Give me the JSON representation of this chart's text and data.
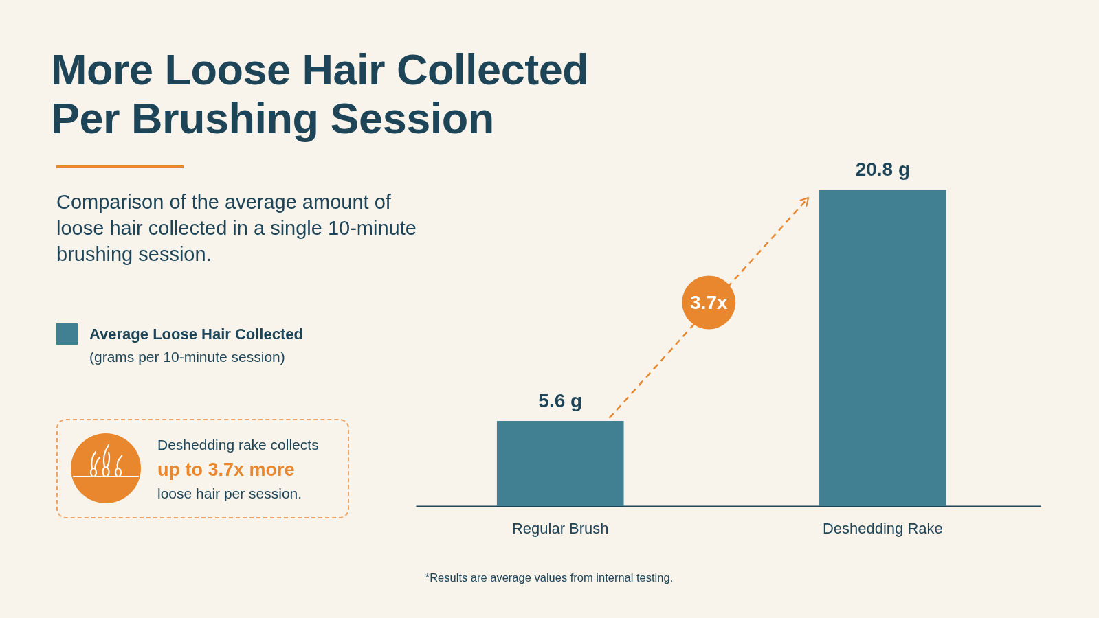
{
  "chart_data": {
    "type": "bar",
    "title": "More Loose Hair Collected Per Brushing Session",
    "subtitle": "Comparison of the average amount of loose hair collected in a single 10-minute brushing session.",
    "categories": [
      "Regular Brush",
      "Deshedding Rake"
    ],
    "series": [
      {
        "name": "Average Loose Hair Collected",
        "color": "#417f93",
        "values": [
          5.6,
          20.8
        ],
        "value_labels": [
          "5.6 g",
          "20.8 g"
        ]
      }
    ],
    "legend": "left",
    "legend_title": "(grams per 10-minute session)",
    "annotations": [
      "3.7x",
      "Deshedding rake collects",
      "up to 3.7x more",
      "loose hair per session.",
      "*Results are average values from internal testing."
    ]
  }
}
